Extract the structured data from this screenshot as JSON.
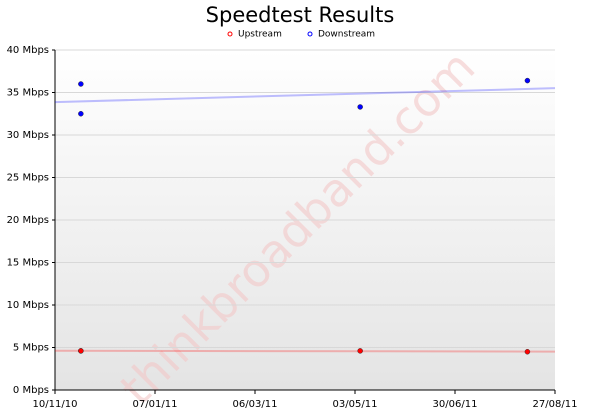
{
  "chart_data": {
    "type": "scatter",
    "title": "Speedtest Results",
    "watermark": "thinkbroadband.com",
    "series": [
      {
        "name": "Upstream",
        "color": "#ff0000",
        "x": [
          "25/11/10",
          "25/11/10",
          "06/05/11",
          "11/08/11"
        ],
        "values": [
          4.6,
          4.6,
          4.6,
          4.5
        ]
      },
      {
        "name": "Downstream",
        "color": "#0000ff",
        "x": [
          "25/11/10",
          "25/11/10",
          "06/05/11",
          "11/08/11"
        ],
        "values": [
          36,
          32.5,
          33.3,
          36.4
        ]
      }
    ],
    "xlim": [
      "10/11/10",
      "27/08/11"
    ],
    "xticks": [
      "10/11/10",
      "07/01/11",
      "06/03/11",
      "03/05/11",
      "30/06/11",
      "27/08/11"
    ],
    "ylim": [
      0,
      40
    ],
    "yticks": [
      {
        "value": 0,
        "label": "0 Mbps"
      },
      {
        "value": 5,
        "label": "5 Mbps"
      },
      {
        "value": 10,
        "label": "10 Mbps"
      },
      {
        "value": 15,
        "label": "15 Mbps"
      },
      {
        "value": 20,
        "label": "20 Mbps"
      },
      {
        "value": 25,
        "label": "25 Mbps"
      },
      {
        "value": 30,
        "label": "30 Mbps"
      },
      {
        "value": 35,
        "label": "35 Mbps"
      },
      {
        "value": 40,
        "label": "40 Mbps"
      }
    ],
    "grid": true,
    "trendline": true,
    "legend": "top"
  }
}
